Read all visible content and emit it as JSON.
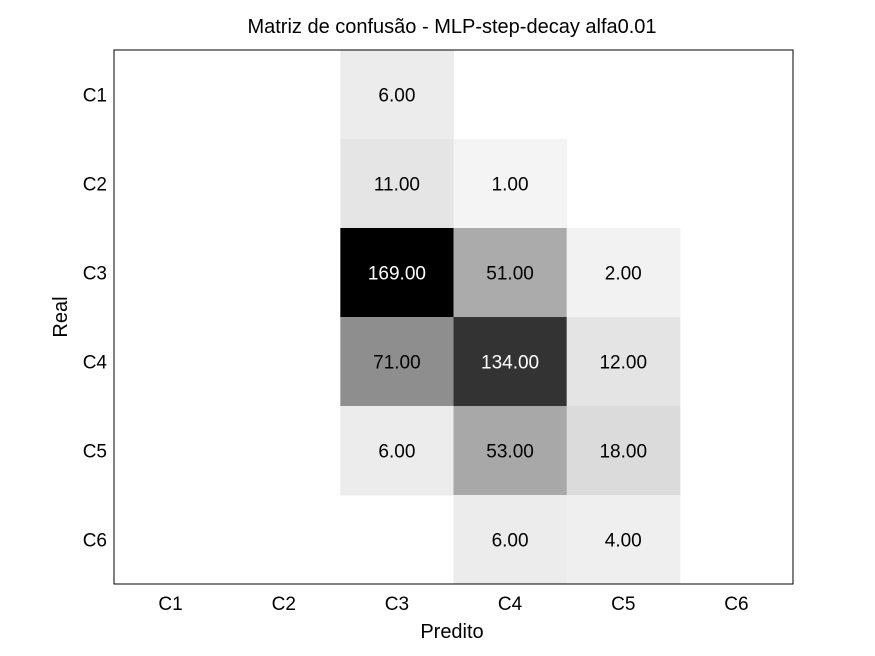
{
  "chart_data": {
    "type": "heatmap",
    "title": "Matriz de confusão - MLP-step-decay alfa0.01",
    "xlabel": "Predito",
    "ylabel": "Real",
    "x_categories": [
      "C1",
      "C2",
      "C3",
      "C4",
      "C5",
      "C6"
    ],
    "y_categories": [
      "C1",
      "C2",
      "C3",
      "C4",
      "C5",
      "C6"
    ],
    "values": [
      [
        null,
        null,
        6,
        null,
        null,
        null
      ],
      [
        null,
        null,
        11,
        1,
        null,
        null
      ],
      [
        null,
        null,
        169,
        51,
        2,
        null
      ],
      [
        null,
        null,
        71,
        134,
        12,
        null
      ],
      [
        null,
        null,
        6,
        53,
        18,
        null
      ],
      [
        null,
        null,
        null,
        6,
        4,
        null
      ]
    ],
    "value_labels": [
      [
        "",
        "",
        "6.00",
        "",
        "",
        ""
      ],
      [
        "",
        "",
        "11.00",
        "1.00",
        "",
        ""
      ],
      [
        "",
        "",
        "169.00",
        "51.00",
        "2.00",
        ""
      ],
      [
        "",
        "",
        "71.00",
        "134.00",
        "12.00",
        ""
      ],
      [
        "",
        "",
        "6.00",
        "53.00",
        "18.00",
        ""
      ],
      [
        "",
        "",
        "",
        "6.00",
        "4.00",
        ""
      ]
    ],
    "colormap": "white-to-black",
    "color_range": [
      0,
      169
    ],
    "grid": false
  }
}
